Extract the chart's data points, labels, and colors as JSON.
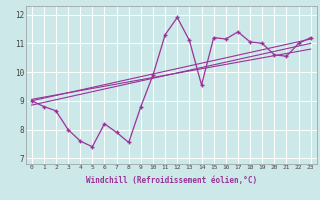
{
  "x": [
    0,
    1,
    2,
    3,
    4,
    5,
    6,
    7,
    8,
    9,
    10,
    11,
    12,
    13,
    14,
    15,
    16,
    17,
    18,
    19,
    20,
    21,
    22,
    23
  ],
  "y_main": [
    9.0,
    8.8,
    8.65,
    8.0,
    7.6,
    7.4,
    8.2,
    7.9,
    7.55,
    8.8,
    9.9,
    11.3,
    11.9,
    11.1,
    9.55,
    11.2,
    11.15,
    11.4,
    11.05,
    11.0,
    10.6,
    10.55,
    11.0,
    11.2
  ],
  "line_color": "#993399",
  "bg_color": "#cce8e8",
  "ylabel_vals": [
    7,
    8,
    9,
    10,
    11,
    12
  ],
  "xlabel_vals": [
    0,
    1,
    2,
    3,
    4,
    5,
    6,
    7,
    8,
    9,
    10,
    11,
    12,
    13,
    14,
    15,
    16,
    17,
    18,
    19,
    20,
    21,
    22,
    23
  ],
  "xlabel": "Windchill (Refroidissement éolien,°C)",
  "ylim": [
    6.8,
    12.3
  ],
  "xlim": [
    -0.5,
    23.5
  ],
  "trend1": [
    9.0,
    11.15
  ],
  "trend2": [
    8.85,
    11.0
  ],
  "trend3": [
    9.05,
    10.8
  ],
  "figw": 3.2,
  "figh": 2.0,
  "dpi": 100
}
